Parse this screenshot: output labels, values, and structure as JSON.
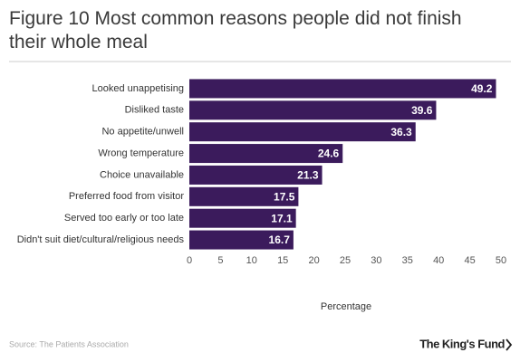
{
  "chart_data": {
    "type": "bar",
    "orientation": "horizontal",
    "title": "Figure 10 Most common reasons people did not finish their whole meal",
    "categories": [
      "Looked unappetising",
      "Disliked taste",
      "No appetite/unwell",
      "Wrong temperature",
      "Choice unavailable",
      "Preferred food from visitor",
      "Served too early or too late",
      "Didn't suit diet/cultural/religious needs"
    ],
    "values": [
      49.2,
      39.6,
      36.3,
      24.6,
      21.3,
      17.5,
      17.1,
      16.7
    ],
    "color": "#3b1b5c",
    "xlabel": "Percentage",
    "xlim": [
      0,
      50
    ],
    "xticks": [
      0,
      5,
      10,
      15,
      20,
      25,
      30,
      35,
      40,
      45,
      50
    ],
    "source": "Source: The Patients Association",
    "logo": "The King's Fund"
  }
}
